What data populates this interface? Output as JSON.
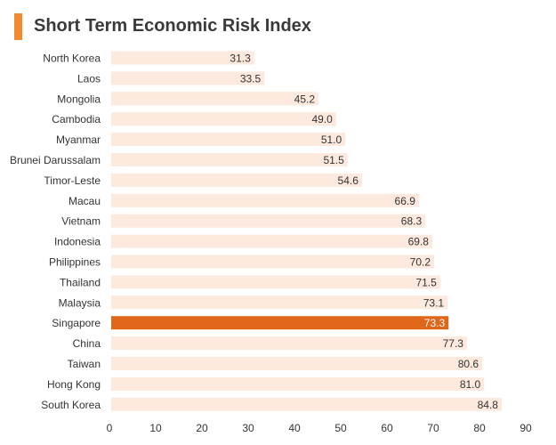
{
  "colors": {
    "accent": "#f28a2e",
    "bar_track": "#fde9de",
    "bar_highlight": "#e0661a",
    "label_text": "#333333",
    "highlight_text": "#ffffff"
  },
  "chart_data": {
    "type": "bar",
    "orientation": "horizontal",
    "title": "Short Term Economic Risk Index",
    "xlabel": "",
    "ylabel": "",
    "xlim": [
      0,
      90
    ],
    "x_ticks": [
      "0",
      "10",
      "20",
      "30",
      "40",
      "50",
      "60",
      "70",
      "80",
      "90"
    ],
    "grid": false,
    "categories": [
      "North Korea",
      "Laos",
      "Mongolia",
      "Cambodia",
      "Myanmar",
      "Brunei Darussalam",
      "Timor-Leste",
      "Macau",
      "Vietnam",
      "Indonesia",
      "Philippines",
      "Thailand",
      "Malaysia",
      "Singapore",
      "China",
      "Taiwan",
      "Hong Kong",
      "South Korea"
    ],
    "values": [
      31.3,
      33.5,
      45.2,
      49.0,
      51.0,
      51.5,
      54.6,
      66.9,
      68.3,
      69.8,
      70.2,
      71.5,
      73.1,
      73.3,
      77.3,
      80.6,
      81.0,
      84.8
    ],
    "value_labels": [
      "31.3",
      "33.5",
      "45.2",
      "49.0",
      "51.0",
      "51.5",
      "54.6",
      "66.9",
      "68.3",
      "69.8",
      "70.2",
      "71.5",
      "73.1",
      "73.3",
      "77.3",
      "80.6",
      "81.0",
      "84.8"
    ],
    "highlight": "Singapore"
  }
}
